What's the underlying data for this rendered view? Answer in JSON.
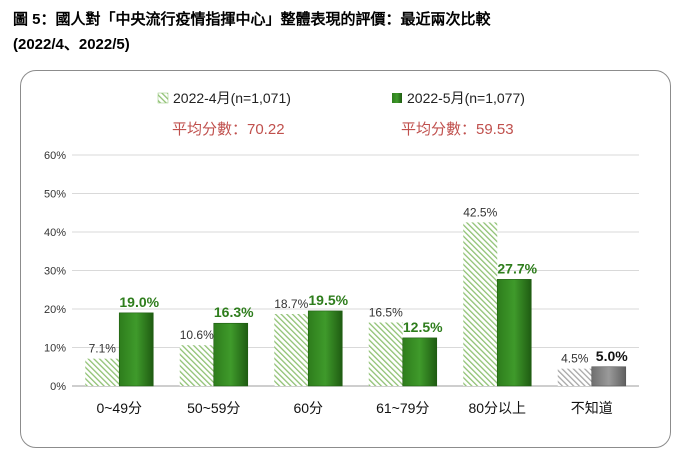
{
  "title_line1": "圖 5：國人對「中央流行疫情指揮中心」整體表現的評價：最近兩次比較",
  "title_line2": "(2022/4、2022/5)",
  "chart_data": {
    "type": "bar",
    "categories": [
      "0~49分",
      "50~59分",
      "60分",
      "61~79分",
      "80分以上",
      "不知道"
    ],
    "series": [
      {
        "name": "2022-4月(n=1,071)",
        "values": [
          7.1,
          10.6,
          18.7,
          16.5,
          42.5,
          4.5
        ]
      },
      {
        "name": "2022-5月(n=1,077)",
        "values": [
          19.0,
          16.3,
          19.5,
          12.5,
          27.7,
          5.0
        ]
      }
    ],
    "annotations": [
      "平均分數：70.22",
      "平均分數：59.53"
    ],
    "ylim": [
      0,
      60
    ],
    "yticks": [
      "0%",
      "10%",
      "20%",
      "30%",
      "40%",
      "50%",
      "60%"
    ],
    "grid": true,
    "legend_position": "top",
    "colors": {
      "series1": "#8fc173",
      "series2": "#2e7d1c",
      "series2_dark": "#1f5c12",
      "unknown1": "#a6a6a6",
      "unknown2": "#7f7f7f",
      "annotation": "#c0504d",
      "series2_label": "#2e7d1c"
    }
  }
}
